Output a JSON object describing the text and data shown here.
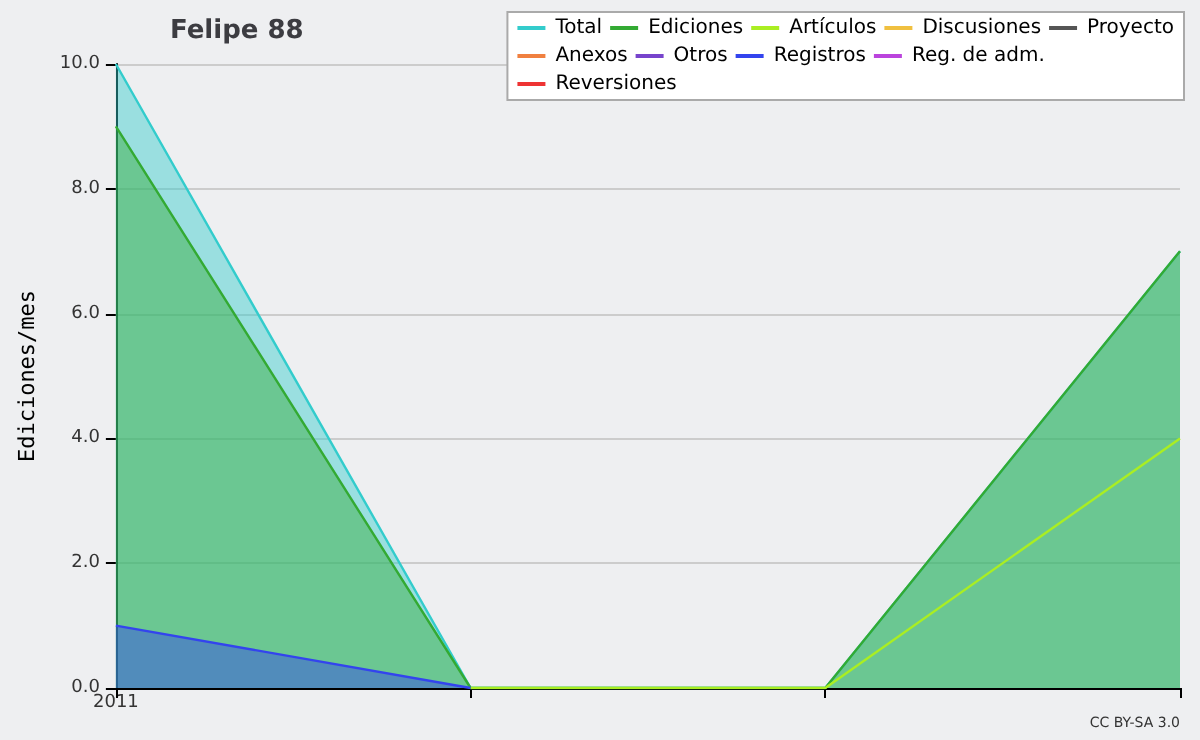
{
  "chart_data": {
    "type": "area",
    "title": "Felipe 88",
    "ylabel": "Ediciones/mes",
    "categories": [
      "2011",
      null,
      null,
      null
    ],
    "series": [
      {
        "name": "Total",
        "color": "#33cccc",
        "values": [
          10,
          0,
          0,
          7
        ]
      },
      {
        "name": "Ediciones",
        "color": "#33aa33",
        "values": [
          9,
          0,
          0,
          7
        ]
      },
      {
        "name": "Artículos",
        "color": "#aaee22",
        "type": "line",
        "values": [
          null,
          0,
          0,
          4
        ]
      },
      {
        "name": "Discusiones",
        "color": "#f0c040",
        "type": "line",
        "values": [
          null,
          null,
          null,
          null
        ]
      },
      {
        "name": "Proyecto",
        "color": "#555555",
        "type": "line",
        "values": [
          null,
          null,
          null,
          null
        ]
      },
      {
        "name": "Anexos",
        "color": "#f08040",
        "type": "line",
        "values": [
          null,
          null,
          null,
          null
        ]
      },
      {
        "name": "Otros",
        "color": "#7744cc",
        "type": "line",
        "values": [
          null,
          null,
          null,
          null
        ]
      },
      {
        "name": "Registros",
        "color": "#3344ee",
        "values": [
          1,
          0,
          null,
          null
        ]
      },
      {
        "name": "Reg. de adm.",
        "color": "#bb44dd",
        "type": "line",
        "values": [
          null,
          null,
          null,
          null
        ]
      },
      {
        "name": "Reversiones",
        "color": "#ee3333",
        "type": "line",
        "values": [
          null,
          null,
          null,
          null
        ]
      }
    ],
    "ylim": [
      0,
      10
    ],
    "yticks": [
      {
        "value": 0,
        "label": "0.0"
      },
      {
        "value": 2,
        "label": "2.0"
      },
      {
        "value": 4,
        "label": "4.0"
      },
      {
        "value": 6,
        "label": "6.0"
      },
      {
        "value": 8,
        "label": "8.0"
      },
      {
        "value": 10,
        "label": "10.0"
      }
    ],
    "grid": "y",
    "legend": "top right",
    "marker": "none",
    "line_style": "solid",
    "annotations": [
      "CC BY-SA 3.0"
    ]
  }
}
